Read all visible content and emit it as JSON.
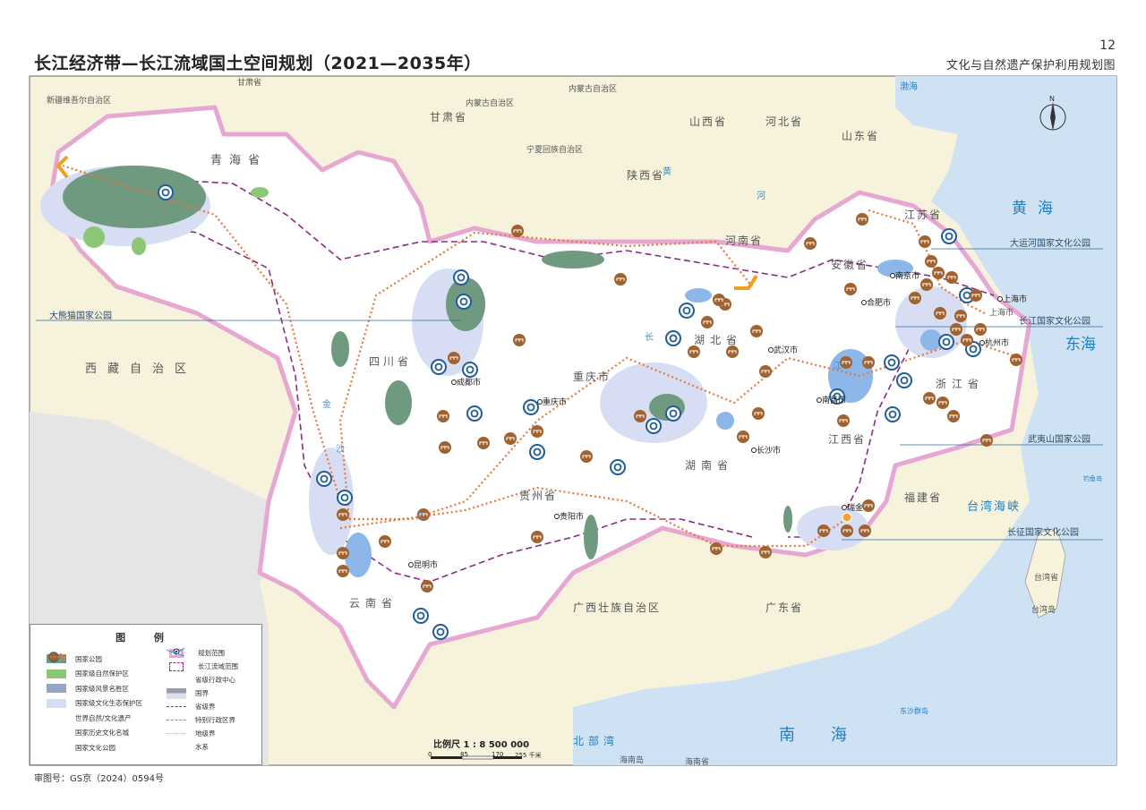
{
  "header": {
    "title": "长江经济带—长江流域国土空间规划（2021—2035年）",
    "page_number": "12",
    "map_name": "文化与自然遗产保护利用规划图"
  },
  "footer": {
    "approval_number": "审图号：GS京（2024）0594号"
  },
  "colors": {
    "national_park": "#6f9a80",
    "nature_reserve": "#8cc775",
    "scenic_area": "#97a5c4",
    "eco_culture_zone": "#d7def3",
    "heritage": "#1f5c99",
    "historic_city": "#a0622e",
    "culture_park_route": "#e8773a",
    "plan_boundary": "#e6a8d2",
    "basin_boundary": "#8a2b84",
    "sea": "#cfe2f4",
    "outside_land": "#f6f2dc"
  },
  "provinces": [
    "青海省",
    "西藏自治区",
    "四川省",
    "云南省",
    "贵州省",
    "湖南省",
    "湖北省",
    "江西省",
    "安徽省",
    "浙江省",
    "江苏省",
    "重庆市",
    "甘肃省",
    "陕西省",
    "河南省",
    "山西省",
    "河北省",
    "山东省",
    "福建省",
    "广东省",
    "广西壮族自治区",
    "内蒙古自治区",
    "宁夏回族自治区",
    "新疆维吾尔自治区",
    "甘肃省",
    "内蒙古自治区",
    "台湾省",
    "台湾岛",
    "海南岛",
    "海南省",
    "上海市"
  ],
  "cities": [
    "成都市",
    "重庆市",
    "贵阳市",
    "昆明市",
    "长沙市",
    "武汉市",
    "南昌市",
    "合肥市",
    "南京市",
    "上海市",
    "杭州市",
    "瑞金"
  ],
  "seas": [
    "黄海",
    "东海",
    "南海",
    "北部湾",
    "台湾海峡",
    "渤海",
    "东沙群岛",
    "钓鱼岛"
  ],
  "rivers": [
    "金",
    "沙",
    "江",
    "长",
    "江",
    "黄",
    "河"
  ],
  "callouts": [
    "大运河国家文化公园",
    "长江国家文化公园",
    "武夷山国家公园",
    "长征国家文化公园",
    "大熊猫国家公园"
  ],
  "legend": {
    "title": "图 例",
    "left": [
      {
        "label": "国家公园",
        "icon": "national-park-swatch"
      },
      {
        "label": "国家级自然保护区",
        "icon": "nature-reserve-swatch"
      },
      {
        "label": "国家级风景名胜区",
        "icon": "scenic-area-swatch"
      },
      {
        "label": "国家级文化生态保护区",
        "icon": "eco-culture-swatch"
      },
      {
        "label": "世界自然/文化遗产",
        "icon": "world-heritage-icon"
      },
      {
        "label": "国家历史文化名城",
        "icon": "historic-city-icon"
      },
      {
        "label": "国家文化公园",
        "icon": "dotted-arrow-icon"
      }
    ],
    "right": [
      {
        "label": "规划范围",
        "icon": "plan-boundary-swatch"
      },
      {
        "label": "长江流域范围",
        "icon": "basin-boundary-swatch"
      },
      {
        "label": "省级行政中心",
        "icon": "capital-dot-icon"
      },
      {
        "label": "国界",
        "icon": "national-border-icon"
      },
      {
        "label": "省级界",
        "icon": "province-border-icon"
      },
      {
        "label": "特别行政区界",
        "icon": "sar-border-icon"
      },
      {
        "label": "地级界",
        "icon": "prefecture-border-icon"
      },
      {
        "label": "水系",
        "icon": "water-icon"
      }
    ]
  },
  "scale": {
    "label": "比例尺 1 : 8 500 000",
    "ticks": [
      "0",
      "85",
      "170",
      "255 千米"
    ]
  },
  "north_arrow": "N"
}
